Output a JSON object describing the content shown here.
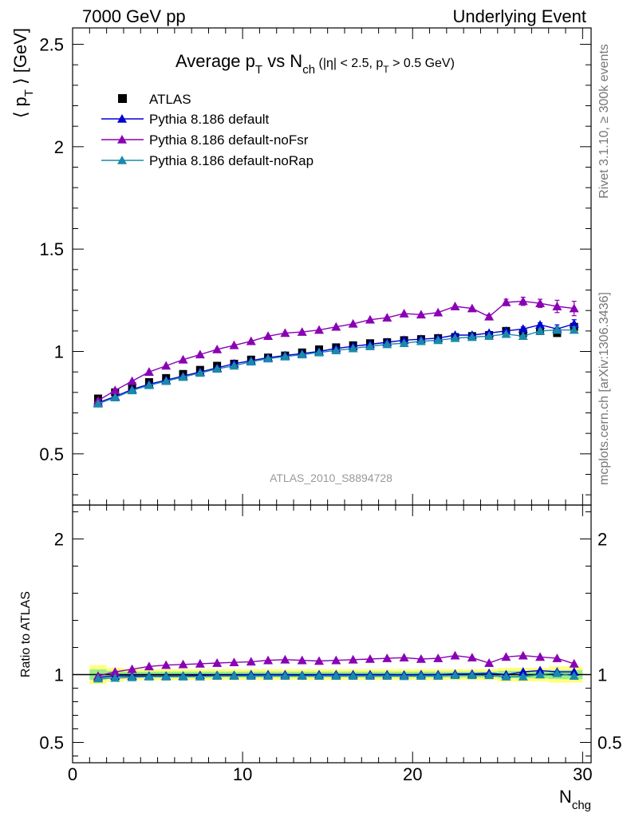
{
  "header": {
    "left": "7000 GeV pp",
    "right": "Underlying Event"
  },
  "side_text": {
    "top": "Rivet 3.1.10, ≥ 300k events",
    "bottom": "mcplots.cern.ch [arXiv:1306.3436]"
  },
  "chart_data": {
    "type": "line",
    "title": {
      "main": "Average p",
      "sub1": "T",
      "mid": " vs N",
      "sub2": "ch",
      "cuts_a": " (|η| < 2.5, p",
      "cuts_sub": "T",
      "cuts_b": " > 0.5 GeV)"
    },
    "watermark": "ATLAS_2010_S8894728",
    "xlabel": {
      "main": "N",
      "sub": "chg"
    },
    "ylabel": {
      "main": "⟨ p",
      "sub": "T",
      "end": " ⟩ [GeV]"
    },
    "ratio_ylabel": "Ratio to ATLAS",
    "xlim": [
      0,
      30.5
    ],
    "ylim": [
      0.25,
      2.58
    ],
    "ratio_ylim": [
      0.35,
      2.25
    ],
    "xticks": [
      "0",
      "10",
      "20",
      "30"
    ],
    "yticks": [
      "0.5",
      "1",
      "1.5",
      "2",
      "2.5"
    ],
    "ratio_yticks": [
      "0.5",
      "1",
      "2"
    ],
    "legend_position": "top-left",
    "x": [
      1.5,
      2.5,
      3.5,
      4.5,
      5.5,
      6.5,
      7.5,
      8.5,
      9.5,
      10.5,
      11.5,
      12.5,
      13.5,
      14.5,
      15.5,
      16.5,
      17.5,
      18.5,
      19.5,
      20.5,
      21.5,
      22.5,
      23.5,
      24.5,
      25.5,
      26.5,
      27.5,
      28.5,
      29.5
    ],
    "series": [
      {
        "name": "ATLAS",
        "style": "data",
        "color": "#000000",
        "values": [
          0.77,
          0.8,
          0.83,
          0.85,
          0.87,
          0.89,
          0.91,
          0.93,
          0.94,
          0.96,
          0.97,
          0.98,
          0.995,
          1.01,
          1.02,
          1.03,
          1.04,
          1.045,
          1.055,
          1.06,
          1.065,
          1.07,
          1.075,
          1.08,
          1.1,
          1.09,
          1.1,
          1.09,
          1.12
        ],
        "ratio": [
          1,
          1,
          1,
          1,
          1,
          1,
          1,
          1,
          1,
          1,
          1,
          1,
          1,
          1,
          1,
          1,
          1,
          1,
          1,
          1,
          1,
          1,
          1,
          1,
          1,
          1,
          1,
          1,
          1
        ],
        "band": [
          0.07,
          0.05,
          0.04,
          0.04,
          0.04,
          0.04,
          0.04,
          0.04,
          0.04,
          0.04,
          0.04,
          0.04,
          0.04,
          0.04,
          0.04,
          0.04,
          0.04,
          0.04,
          0.04,
          0.04,
          0.04,
          0.04,
          0.04,
          0.04,
          0.05,
          0.05,
          0.05,
          0.06,
          0.06
        ]
      },
      {
        "name": "Pythia 8.186 default",
        "style": "mc",
        "color": "#0000d0",
        "values": [
          0.75,
          0.78,
          0.815,
          0.84,
          0.86,
          0.88,
          0.9,
          0.92,
          0.94,
          0.955,
          0.97,
          0.98,
          0.99,
          1.0,
          1.015,
          1.025,
          1.035,
          1.045,
          1.055,
          1.06,
          1.065,
          1.08,
          1.08,
          1.09,
          1.1,
          1.11,
          1.13,
          1.11,
          1.135
        ],
        "ratio": [
          0.98,
          0.99,
          0.99,
          0.99,
          0.99,
          0.99,
          0.995,
          0.995,
          0.995,
          1.0,
          1.0,
          1.0,
          0.995,
          1.0,
          1.0,
          1.0,
          1.0,
          1.0,
          0.998,
          1.0,
          1.0,
          1.005,
          1.005,
          1.01,
          1.0,
          1.02,
          1.03,
          1.02,
          1.02
        ],
        "errors": [
          0,
          0,
          0,
          0,
          0,
          0,
          0,
          0,
          0,
          0,
          0,
          0,
          0,
          0,
          0,
          0,
          0,
          0,
          0,
          0,
          0,
          0,
          0,
          0,
          0,
          0.01,
          0.01,
          0.02,
          0.02
        ]
      },
      {
        "name": "Pythia 8.186 default-noFsr",
        "style": "mc",
        "color": "#8a00b4",
        "values": [
          0.76,
          0.81,
          0.855,
          0.9,
          0.93,
          0.96,
          0.985,
          1.01,
          1.03,
          1.05,
          1.075,
          1.09,
          1.095,
          1.105,
          1.12,
          1.135,
          1.155,
          1.165,
          1.185,
          1.18,
          1.19,
          1.22,
          1.21,
          1.17,
          1.24,
          1.245,
          1.235,
          1.22,
          1.21
        ],
        "ratio": [
          0.99,
          1.02,
          1.04,
          1.06,
          1.07,
          1.075,
          1.08,
          1.085,
          1.09,
          1.095,
          1.105,
          1.11,
          1.105,
          1.1,
          1.105,
          1.11,
          1.115,
          1.12,
          1.125,
          1.115,
          1.12,
          1.14,
          1.125,
          1.085,
          1.13,
          1.14,
          1.13,
          1.12,
          1.08
        ],
        "errors": [
          0,
          0,
          0,
          0,
          0,
          0,
          0,
          0,
          0,
          0,
          0,
          0,
          0,
          0,
          0,
          0,
          0,
          0,
          0,
          0,
          0,
          0,
          0,
          0.01,
          0.015,
          0.02,
          0.02,
          0.03,
          0.035
        ]
      },
      {
        "name": "Pythia 8.186 default-noRap",
        "style": "mc",
        "color": "#1a8aaa",
        "values": [
          0.745,
          0.775,
          0.81,
          0.835,
          0.855,
          0.875,
          0.895,
          0.915,
          0.93,
          0.95,
          0.965,
          0.975,
          0.985,
          0.995,
          1.005,
          1.015,
          1.025,
          1.035,
          1.04,
          1.05,
          1.055,
          1.065,
          1.07,
          1.075,
          1.085,
          1.075,
          1.1,
          1.105,
          1.105
        ],
        "ratio": [
          0.97,
          0.975,
          0.98,
          0.985,
          0.985,
          0.985,
          0.985,
          0.99,
          0.99,
          0.99,
          0.99,
          0.99,
          0.99,
          0.99,
          0.99,
          0.99,
          0.99,
          0.99,
          0.988,
          0.99,
          0.99,
          0.995,
          0.995,
          0.995,
          0.985,
          0.985,
          1.0,
          1.01,
          0.99
        ],
        "errors": [
          0,
          0,
          0,
          0,
          0,
          0,
          0,
          0,
          0,
          0,
          0,
          0,
          0,
          0,
          0,
          0,
          0,
          0,
          0,
          0,
          0,
          0,
          0,
          0,
          0,
          0,
          0.01,
          0.015,
          0.015
        ]
      }
    ]
  }
}
